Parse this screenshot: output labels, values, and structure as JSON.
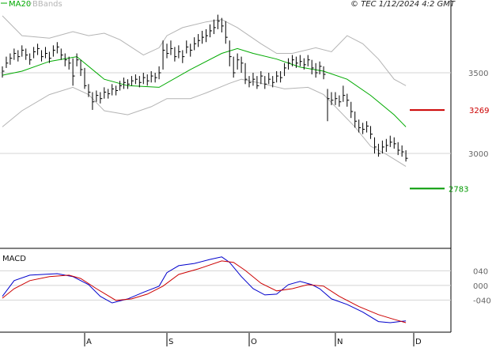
{
  "chart_data": [
    {
      "type": "ohlc",
      "credit": "© TEC 1/12/2024 4:2 GMT",
      "categories": [
        null,
        null,
        null,
        null,
        null,
        null,
        null,
        null,
        null,
        null,
        null,
        null,
        null,
        null,
        null,
        null,
        null,
        null,
        null,
        null,
        null,
        "A",
        null,
        null,
        null,
        null,
        null,
        null,
        null,
        null,
        null,
        null,
        null,
        null,
        null,
        null,
        null,
        null,
        null,
        null,
        null,
        null,
        "S",
        null,
        null,
        null,
        null,
        null,
        null,
        null,
        null,
        null,
        null,
        null,
        null,
        null,
        null,
        null,
        null,
        null,
        null,
        null,
        null,
        "O",
        null,
        null,
        null,
        null,
        null,
        null,
        null,
        null,
        null,
        null,
        null,
        null,
        null,
        null,
        null,
        null,
        null,
        null,
        null,
        null,
        null,
        "N",
        null,
        null,
        null,
        null,
        null,
        null,
        null,
        null,
        null,
        null,
        null,
        null,
        null,
        null,
        null,
        null,
        null,
        null,
        null,
        "D"
      ],
      "values": [
        3510,
        3560,
        3590,
        3620,
        3600,
        3640,
        3610,
        3580,
        3630,
        3650,
        3600,
        3620,
        3590,
        3640,
        3660,
        3610,
        3580,
        3560,
        3480,
        3580,
        3520,
        3420,
        3380,
        3320,
        3360,
        3340,
        3380,
        3370,
        3400,
        3390,
        3420,
        3440,
        3430,
        3450,
        3460,
        3440,
        3470,
        3450,
        3480,
        3470,
        3500,
        3640,
        3620,
        3650,
        3600,
        3630,
        3600,
        3660,
        3640,
        3680,
        3700,
        3720,
        3730,
        3760,
        3780,
        3820,
        3790,
        3720,
        3600,
        3500,
        3580,
        3560,
        3460,
        3440,
        3460,
        3420,
        3480,
        3430,
        3460,
        3440,
        3480,
        3470,
        3530,
        3560,
        3580,
        3560,
        3570,
        3550,
        3580,
        3530,
        3500,
        3540,
        3490,
        3340,
        3330,
        3340,
        3320,
        3360,
        3330,
        3260,
        3200,
        3160,
        3150,
        3170,
        3120,
        3040,
        3000,
        3040,
        3050,
        3070,
        3060,
        3020,
        3010,
        2970,
        null,
        null
      ],
      "high": [
        3540,
        3600,
        3620,
        3650,
        3640,
        3670,
        3650,
        3620,
        3660,
        3680,
        3640,
        3660,
        3630,
        3670,
        3690,
        3650,
        3620,
        3600,
        3590,
        3620,
        3580,
        3530,
        3430,
        3380,
        3390,
        3380,
        3410,
        3400,
        3430,
        3420,
        3450,
        3470,
        3460,
        3480,
        3490,
        3480,
        3500,
        3490,
        3510,
        3500,
        3540,
        3700,
        3680,
        3700,
        3660,
        3670,
        3640,
        3700,
        3680,
        3720,
        3740,
        3760,
        3770,
        3800,
        3830,
        3860,
        3840,
        3820,
        3700,
        3600,
        3620,
        3600,
        3560,
        3480,
        3500,
        3480,
        3510,
        3480,
        3500,
        3480,
        3510,
        3510,
        3560,
        3590,
        3610,
        3600,
        3610,
        3590,
        3610,
        3580,
        3560,
        3570,
        3540,
        3400,
        3380,
        3380,
        3360,
        3420,
        3370,
        3320,
        3260,
        3210,
        3190,
        3200,
        3170,
        3100,
        3060,
        3080,
        3090,
        3110,
        3100,
        3070,
        3050,
        3020,
        null,
        null
      ],
      "low": [
        3470,
        3530,
        3550,
        3580,
        3570,
        3600,
        3580,
        3550,
        3590,
        3610,
        3570,
        3590,
        3560,
        3600,
        3620,
        3580,
        3540,
        3520,
        3420,
        3540,
        3480,
        3400,
        3350,
        3270,
        3320,
        3310,
        3340,
        3340,
        3360,
        3360,
        3390,
        3400,
        3400,
        3420,
        3430,
        3410,
        3430,
        3420,
        3440,
        3440,
        3460,
        3520,
        3590,
        3610,
        3570,
        3590,
        3560,
        3620,
        3600,
        3640,
        3660,
        3680,
        3690,
        3720,
        3740,
        3770,
        3750,
        3680,
        3540,
        3470,
        3520,
        3500,
        3430,
        3410,
        3420,
        3400,
        3430,
        3400,
        3430,
        3410,
        3440,
        3440,
        3480,
        3520,
        3540,
        3530,
        3540,
        3520,
        3540,
        3490,
        3470,
        3490,
        3460,
        3200,
        3300,
        3300,
        3290,
        3320,
        3290,
        3220,
        3160,
        3130,
        3120,
        3130,
        3090,
        3000,
        2980,
        3000,
        3010,
        3040,
        3030,
        2990,
        2980,
        2950,
        null,
        null
      ],
      "ylim": [
        2417,
        3951
      ],
      "yticks": [
        3000,
        3500
      ],
      "levels": [
        {
          "value": 3269,
          "color": "#cc0000"
        },
        {
          "value": 2783,
          "color": "#009900"
        }
      ],
      "series": [
        {
          "name": "MA20",
          "color": "#00aa00",
          "x": [
            0,
            5,
            12,
            19,
            26,
            32,
            40,
            48,
            56,
            60,
            64,
            70,
            76,
            82,
            88,
            94,
            100,
            103
          ],
          "values": [
            3485,
            3510,
            3570,
            3600,
            3460,
            3420,
            3410,
            3520,
            3620,
            3650,
            3620,
            3585,
            3535,
            3510,
            3460,
            3360,
            3240,
            3165
          ]
        },
        {
          "name": "BBands",
          "color": "#b4b4b4",
          "upper": {
            "x": [
              0,
              5,
              12,
              18,
              22,
              26,
              30,
              36,
              40,
              42,
              46,
              52,
              56,
              60,
              66,
              70,
              74,
              80,
              84,
              88,
              92,
              96,
              100,
              103
            ],
            "values": [
              3853,
              3730,
              3715,
              3755,
              3730,
              3745,
              3705,
              3610,
              3655,
              3730,
              3780,
              3815,
              3830,
              3780,
              3680,
              3620,
              3620,
              3655,
              3630,
              3730,
              3680,
              3585,
              3460,
              3420
            ]
          },
          "lower": {
            "x": [
              0,
              5,
              12,
              18,
              22,
              26,
              32,
              38,
              42,
              48,
              52,
              58,
              61,
              66,
              72,
              78,
              82,
              86,
              90,
              94,
              98,
              103
            ],
            "values": [
              3165,
              3265,
              3365,
              3410,
              3365,
              3265,
              3240,
              3290,
              3340,
              3340,
              3375,
              3435,
              3460,
              3435,
              3400,
              3410,
              3365,
              3265,
              3165,
              3045,
              2995,
              2920
            ]
          }
        }
      ]
    },
    {
      "type": "line",
      "title": "MACD",
      "ylim": [
        -128,
        97
      ],
      "yticks": [
        {
          "value": 40,
          "label": "040"
        },
        {
          "value": 0,
          "label": "000"
        },
        {
          "value": -40,
          "label": "-040"
        }
      ],
      "series": [
        {
          "color": "#0000cc",
          "x": [
            0,
            3,
            7,
            14,
            18,
            22,
            25,
            28,
            32,
            36,
            40,
            42,
            45,
            49,
            53,
            56,
            58,
            61,
            64,
            67,
            70,
            73,
            76,
            79,
            81,
            84,
            88,
            92,
            96,
            99,
            103
          ],
          "values": [
            -30,
            13,
            28,
            32,
            24,
            2,
            -30,
            -48,
            -37,
            -19,
            -2,
            35,
            54,
            60,
            71,
            78,
            63,
            24,
            -9,
            -26,
            -24,
            2,
            11,
            2,
            -9,
            -37,
            -52,
            -73,
            -99,
            -102,
            -97
          ]
        },
        {
          "color": "#cc0000",
          "x": [
            0,
            3,
            7,
            12,
            17,
            20,
            24,
            29,
            33,
            37,
            41,
            45,
            50,
            56,
            59,
            62,
            66,
            70,
            74,
            78,
            82,
            86,
            91,
            96,
            100,
            103
          ],
          "values": [
            -35,
            -9,
            13,
            24,
            28,
            19,
            -9,
            -41,
            -37,
            -24,
            -2,
            30,
            45,
            67,
            63,
            41,
            6,
            -15,
            -9,
            2,
            -2,
            -30,
            -58,
            -80,
            -93,
            -102
          ]
        }
      ]
    }
  ]
}
